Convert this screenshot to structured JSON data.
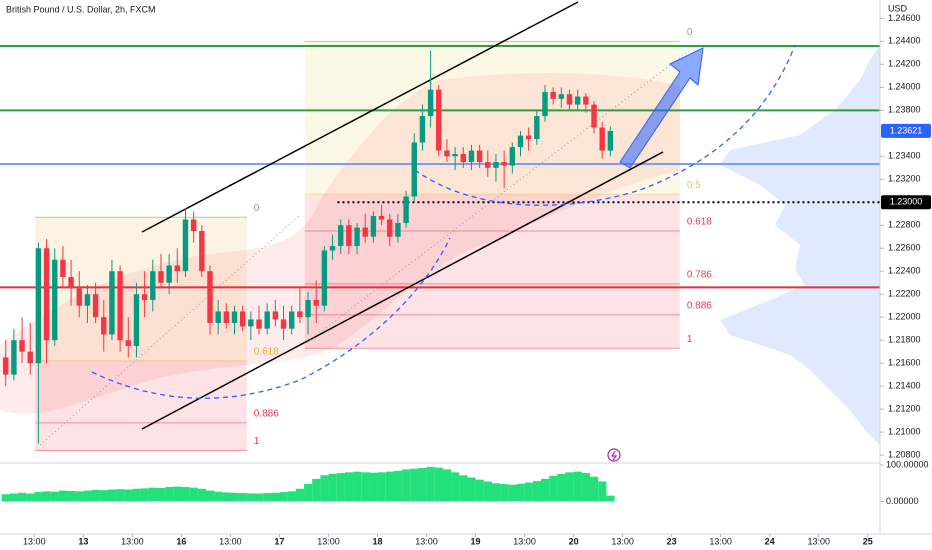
{
  "chart_data": {
    "type": "candlestick",
    "title": "British Pound / U.S. Dollar, 2h, FXCM",
    "y_axis_label": "USD",
    "up_color": "#089981",
    "down_color": "#f23645",
    "xlim": [
      -0.7,
      107
    ],
    "ylim": [
      1.2074,
      1.2476
    ],
    "yticks": [
      {
        "value": 1.246,
        "label": "1.24600"
      },
      {
        "value": 1.244,
        "label": "1.24400"
      },
      {
        "value": 1.242,
        "label": "1.24200"
      },
      {
        "value": 1.24,
        "label": "1.24000"
      },
      {
        "value": 1.238,
        "label": "1.23800"
      },
      {
        "value": 1.234,
        "label": "1.23400"
      },
      {
        "value": 1.232,
        "label": "1.23200"
      },
      {
        "value": 1.228,
        "label": "1.22800"
      },
      {
        "value": 1.226,
        "label": "1.22600"
      },
      {
        "value": 1.224,
        "label": "1.22400"
      },
      {
        "value": 1.222,
        "label": "1.22200"
      },
      {
        "value": 1.22,
        "label": "1.22000"
      },
      {
        "value": 1.218,
        "label": "1.21800"
      },
      {
        "value": 1.216,
        "label": "1.21600"
      },
      {
        "value": 1.214,
        "label": "1.21400"
      },
      {
        "value": 1.212,
        "label": "1.21200"
      },
      {
        "value": 1.21,
        "label": "1.21000"
      },
      {
        "value": 1.208,
        "label": "1.20800"
      }
    ],
    "xticks": [
      {
        "value": 3.5,
        "label": "13:00"
      },
      {
        "value": 9.5,
        "label": "13"
      },
      {
        "value": 15.5,
        "label": "13:00"
      },
      {
        "value": 21.5,
        "label": "16"
      },
      {
        "value": 27.5,
        "label": "13:00"
      },
      {
        "value": 33.5,
        "label": "17"
      },
      {
        "value": 39.5,
        "label": "13:00"
      },
      {
        "value": 45.5,
        "label": "18"
      },
      {
        "value": 51.5,
        "label": "13:00"
      },
      {
        "value": 57.5,
        "label": "19"
      },
      {
        "value": 63.5,
        "label": "13:00"
      },
      {
        "value": 69.5,
        "label": "20"
      },
      {
        "value": 75.5,
        "label": "13:00"
      },
      {
        "value": 81.5,
        "label": "23"
      },
      {
        "value": 87.5,
        "label": "13:00"
      },
      {
        "value": 93.5,
        "label": "24"
      },
      {
        "value": 99.5,
        "label": "13:00"
      },
      {
        "value": 105.5,
        "label": "25"
      }
    ],
    "candles": [
      {
        "o": 1.2165,
        "h": 1.218,
        "l": 1.214,
        "c": 1.215
      },
      {
        "o": 1.215,
        "h": 1.219,
        "l": 1.2145,
        "c": 1.218
      },
      {
        "o": 1.218,
        "h": 1.22,
        "l": 1.216,
        "c": 1.217
      },
      {
        "o": 1.217,
        "h": 1.2195,
        "l": 1.215,
        "c": 1.216
      },
      {
        "o": 1.216,
        "h": 1.2265,
        "l": 1.209,
        "c": 1.226
      },
      {
        "o": 1.226,
        "h": 1.2268,
        "l": 1.216,
        "c": 1.218
      },
      {
        "o": 1.218,
        "h": 1.226,
        "l": 1.2175,
        "c": 1.225
      },
      {
        "o": 1.225,
        "h": 1.2262,
        "l": 1.2225,
        "c": 1.2235
      },
      {
        "o": 1.2235,
        "h": 1.225,
        "l": 1.221,
        "c": 1.2225
      },
      {
        "o": 1.2225,
        "h": 1.224,
        "l": 1.22,
        "c": 1.221
      },
      {
        "o": 1.221,
        "h": 1.2228,
        "l": 1.2195,
        "c": 1.222
      },
      {
        "o": 1.222,
        "h": 1.223,
        "l": 1.2195,
        "c": 1.22
      },
      {
        "o": 1.22,
        "h": 1.2215,
        "l": 1.217,
        "c": 1.2185
      },
      {
        "o": 1.2185,
        "h": 1.225,
        "l": 1.218,
        "c": 1.224
      },
      {
        "o": 1.224,
        "h": 1.2245,
        "l": 1.217,
        "c": 1.218
      },
      {
        "o": 1.218,
        "h": 1.22,
        "l": 1.2165,
        "c": 1.2175
      },
      {
        "o": 1.2175,
        "h": 1.223,
        "l": 1.2165,
        "c": 1.222
      },
      {
        "o": 1.222,
        "h": 1.224,
        "l": 1.22,
        "c": 1.2215
      },
      {
        "o": 1.2215,
        "h": 1.225,
        "l": 1.2205,
        "c": 1.224
      },
      {
        "o": 1.224,
        "h": 1.2255,
        "l": 1.2225,
        "c": 1.223
      },
      {
        "o": 1.223,
        "h": 1.2255,
        "l": 1.222,
        "c": 1.2245
      },
      {
        "o": 1.2245,
        "h": 1.226,
        "l": 1.223,
        "c": 1.224
      },
      {
        "o": 1.224,
        "h": 1.2295,
        "l": 1.2235,
        "c": 1.2285
      },
      {
        "o": 1.2285,
        "h": 1.2292,
        "l": 1.2265,
        "c": 1.2275
      },
      {
        "o": 1.2275,
        "h": 1.228,
        "l": 1.2235,
        "c": 1.224
      },
      {
        "o": 1.224,
        "h": 1.2245,
        "l": 1.2185,
        "c": 1.2195
      },
      {
        "o": 1.2195,
        "h": 1.2215,
        "l": 1.2185,
        "c": 1.2205
      },
      {
        "o": 1.2205,
        "h": 1.2212,
        "l": 1.219,
        "c": 1.2195
      },
      {
        "o": 1.2195,
        "h": 1.221,
        "l": 1.2185,
        "c": 1.2205
      },
      {
        "o": 1.2205,
        "h": 1.221,
        "l": 1.2188,
        "c": 1.2192
      },
      {
        "o": 1.2192,
        "h": 1.2205,
        "l": 1.218,
        "c": 1.2198
      },
      {
        "o": 1.2198,
        "h": 1.221,
        "l": 1.2185,
        "c": 1.219
      },
      {
        "o": 1.219,
        "h": 1.2212,
        "l": 1.2185,
        "c": 1.2205
      },
      {
        "o": 1.2205,
        "h": 1.2215,
        "l": 1.2192,
        "c": 1.2198
      },
      {
        "o": 1.2198,
        "h": 1.221,
        "l": 1.218,
        "c": 1.219
      },
      {
        "o": 1.219,
        "h": 1.221,
        "l": 1.2185,
        "c": 1.2205
      },
      {
        "o": 1.2205,
        "h": 1.2225,
        "l": 1.2195,
        "c": 1.22
      },
      {
        "o": 1.22,
        "h": 1.2222,
        "l": 1.2185,
        "c": 1.2215
      },
      {
        "o": 1.2215,
        "h": 1.2232,
        "l": 1.2195,
        "c": 1.221
      },
      {
        "o": 1.221,
        "h": 1.2262,
        "l": 1.2205,
        "c": 1.2258
      },
      {
        "o": 1.2258,
        "h": 1.2272,
        "l": 1.225,
        "c": 1.2262
      },
      {
        "o": 1.2262,
        "h": 1.2285,
        "l": 1.2255,
        "c": 1.228
      },
      {
        "o": 1.228,
        "h": 1.2285,
        "l": 1.2255,
        "c": 1.2262
      },
      {
        "o": 1.2262,
        "h": 1.2282,
        "l": 1.2255,
        "c": 1.2278
      },
      {
        "o": 1.2278,
        "h": 1.229,
        "l": 1.2265,
        "c": 1.227
      },
      {
        "o": 1.227,
        "h": 1.2292,
        "l": 1.2265,
        "c": 1.2288
      },
      {
        "o": 1.2288,
        "h": 1.2298,
        "l": 1.228,
        "c": 1.2285
      },
      {
        "o": 1.2285,
        "h": 1.229,
        "l": 1.2262,
        "c": 1.227
      },
      {
        "o": 1.227,
        "h": 1.229,
        "l": 1.2265,
        "c": 1.2282
      },
      {
        "o": 1.2282,
        "h": 1.231,
        "l": 1.2278,
        "c": 1.2305
      },
      {
        "o": 1.2305,
        "h": 1.236,
        "l": 1.23,
        "c": 1.2352
      },
      {
        "o": 1.2352,
        "h": 1.2385,
        "l": 1.2345,
        "c": 1.2375
      },
      {
        "o": 1.2375,
        "h": 1.2432,
        "l": 1.2365,
        "c": 1.2398
      },
      {
        "o": 1.2398,
        "h": 1.2402,
        "l": 1.234,
        "c": 1.2345
      },
      {
        "o": 1.2345,
        "h": 1.2355,
        "l": 1.2335,
        "c": 1.234
      },
      {
        "o": 1.234,
        "h": 1.2348,
        "l": 1.2328,
        "c": 1.2342
      },
      {
        "o": 1.2342,
        "h": 1.2348,
        "l": 1.233,
        "c": 1.2335
      },
      {
        "o": 1.2335,
        "h": 1.235,
        "l": 1.2328,
        "c": 1.2345
      },
      {
        "o": 1.2345,
        "h": 1.235,
        "l": 1.233,
        "c": 1.2335
      },
      {
        "o": 1.2335,
        "h": 1.2345,
        "l": 1.2322,
        "c": 1.233
      },
      {
        "o": 1.233,
        "h": 1.2342,
        "l": 1.2318,
        "c": 1.2335
      },
      {
        "o": 1.2335,
        "h": 1.2345,
        "l": 1.2312,
        "c": 1.2332
      },
      {
        "o": 1.2332,
        "h": 1.2352,
        "l": 1.2325,
        "c": 1.2348
      },
      {
        "o": 1.2348,
        "h": 1.2362,
        "l": 1.234,
        "c": 1.2358
      },
      {
        "o": 1.2358,
        "h": 1.2365,
        "l": 1.2345,
        "c": 1.2355
      },
      {
        "o": 1.2355,
        "h": 1.238,
        "l": 1.235,
        "c": 1.2375
      },
      {
        "o": 1.2375,
        "h": 1.2402,
        "l": 1.237,
        "c": 1.2396
      },
      {
        "o": 1.2396,
        "h": 1.24,
        "l": 1.2385,
        "c": 1.239
      },
      {
        "o": 1.239,
        "h": 1.24,
        "l": 1.2382,
        "c": 1.2394
      },
      {
        "o": 1.2394,
        "h": 1.2398,
        "l": 1.238,
        "c": 1.2385
      },
      {
        "o": 1.2385,
        "h": 1.2398,
        "l": 1.238,
        "c": 1.2392
      },
      {
        "o": 1.2392,
        "h": 1.2395,
        "l": 1.2378,
        "c": 1.2385
      },
      {
        "o": 1.2385,
        "h": 1.2388,
        "l": 1.236,
        "c": 1.2365
      },
      {
        "o": 1.2365,
        "h": 1.237,
        "l": 1.2338,
        "c": 1.2345
      },
      {
        "o": 1.2345,
        "h": 1.2366,
        "l": 1.234,
        "c": 1.2362
      }
    ],
    "hlines": [
      {
        "price": 1.2436,
        "color": "#2e9f45"
      },
      {
        "price": 1.238,
        "color": "#2e9f45"
      },
      {
        "price": 1.23333,
        "color": "#7c9cf5"
      },
      {
        "price": 1.2226,
        "color": "#e0313f"
      }
    ],
    "dotted_line": {
      "price": 1.23,
      "x_start": 40.6,
      "color": "#000000"
    },
    "price_labels": [
      {
        "value": 1.23621,
        "label": "1.23621",
        "color": "#2962ff"
      },
      {
        "value": 1.23,
        "label": "1.23000",
        "color": "#000000"
      }
    ],
    "fibs": [
      {
        "x_start": 3.6,
        "x_end": 29.5,
        "levels": [
          {
            "ratio": 0,
            "price": 1.2287,
            "color": "#4caf50"
          },
          {
            "ratio": 0.618,
            "price": 1.2162,
            "color": "#f2a93b"
          },
          {
            "ratio": 0.886,
            "price": 1.2108,
            "color": "#f23645"
          },
          {
            "ratio": 1,
            "price": 1.2084,
            "color": "#f23645"
          }
        ]
      },
      {
        "x_start": 36.6,
        "x_end": 82.5,
        "levels": [
          {
            "ratio": 0,
            "price": 1.244,
            "color": "#4caf50"
          },
          {
            "ratio": 0.5,
            "price": 1.2307,
            "color": "#f2c94c"
          },
          {
            "ratio": 0.618,
            "price": 1.2275,
            "color": "#f23645"
          },
          {
            "ratio": 0.786,
            "price": 1.2229,
            "color": "#f23645"
          },
          {
            "ratio": 0.886,
            "price": 1.2202,
            "color": "#f23645"
          },
          {
            "ratio": 1,
            "price": 1.2173,
            "color": "#f23645"
          }
        ]
      }
    ],
    "indicator": {
      "color": "#22e07a",
      "ylim": [
        -89,
        105.6
      ],
      "yticks": [
        {
          "value": 100,
          "label": "100.00000"
        },
        {
          "value": 0,
          "label": "0.00000"
        }
      ],
      "values": [
        20,
        22,
        24,
        22,
        26,
        28,
        27,
        30,
        29,
        28,
        30,
        32,
        31,
        33,
        34,
        33,
        35,
        36,
        38,
        37,
        40,
        41,
        40,
        38,
        35,
        30,
        27,
        25,
        24,
        23,
        22,
        22,
        23,
        24,
        26,
        28,
        35,
        48,
        62,
        72,
        76,
        78,
        80,
        82,
        80,
        79,
        80,
        82,
        84,
        88,
        90,
        92,
        95,
        93,
        88,
        80,
        72,
        66,
        60,
        55,
        50,
        48,
        46,
        48,
        52,
        56,
        62,
        70,
        76,
        80,
        82,
        78,
        68,
        55,
        16
      ]
    }
  }
}
